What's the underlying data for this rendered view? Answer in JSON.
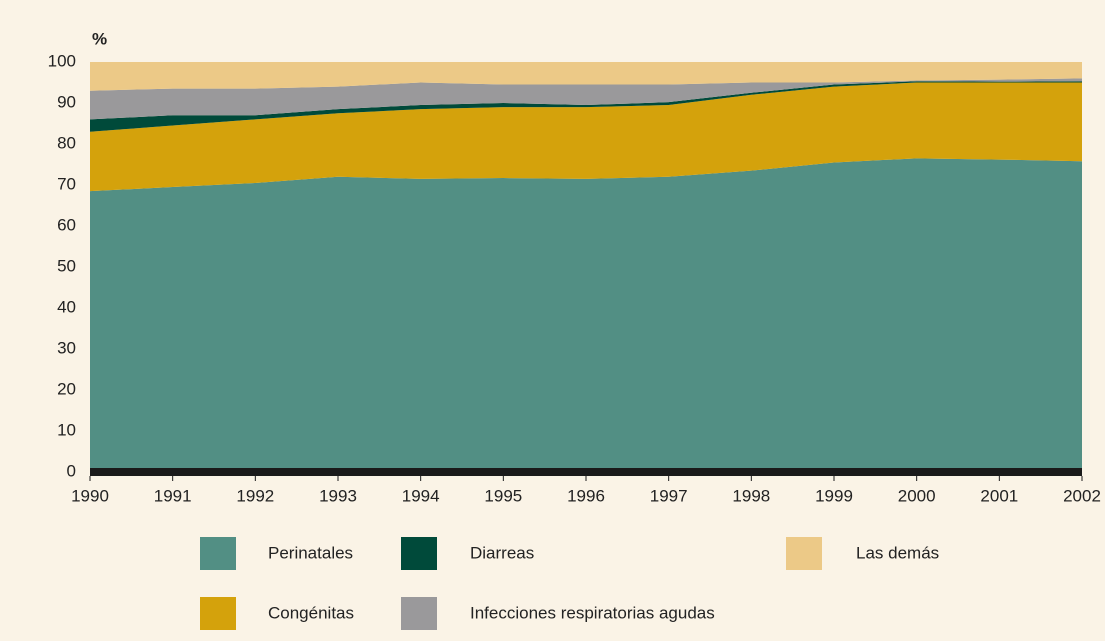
{
  "chart_data": {
    "type": "stacked_area",
    "y_label": "%",
    "x": [
      1990,
      1991,
      1992,
      1993,
      1994,
      1995,
      1996,
      1997,
      1998,
      1999,
      2000,
      2001,
      2002
    ],
    "xlim": [
      1990,
      2002
    ],
    "xticks": [
      1990,
      1991,
      1992,
      1993,
      1994,
      1995,
      1996,
      1997,
      1998,
      1999,
      2000,
      2001,
      2002
    ],
    "ylim": [
      0,
      100
    ],
    "yticks": [
      0,
      10,
      20,
      30,
      40,
      50,
      60,
      70,
      80,
      90,
      100
    ],
    "grid": false,
    "series": [
      {
        "name": "Perinatales",
        "color": "#528f84",
        "values": [
          68.5,
          69.5,
          70.5,
          72,
          71.5,
          71.7,
          71.5,
          72,
          73.5,
          75.5,
          76.5,
          76.2,
          75.8
        ]
      },
      {
        "name": "Congénitas",
        "color": "#d4a20c",
        "values": [
          14.5,
          15,
          15.5,
          15.5,
          17,
          17.3,
          17.5,
          17.5,
          18.5,
          18.5,
          18.5,
          18.8,
          19.2
        ]
      },
      {
        "name": "Diarreas",
        "color": "#004a3a",
        "values": [
          3,
          2.5,
          1,
          1,
          1,
          1,
          0.5,
          0.7,
          0.5,
          0.5,
          0.3,
          0.2,
          0.3
        ]
      },
      {
        "name": "Infecciones respiratorias agudas",
        "color": "#9a999b",
        "values": [
          7,
          6.5,
          6.5,
          5.5,
          5.5,
          4.5,
          5,
          4.3,
          2.5,
          0.5,
          0.2,
          0.5,
          0.7
        ]
      },
      {
        "name": "Las demás",
        "color": "#ecc987",
        "values": [
          7,
          6.5,
          6.5,
          6,
          5,
          5.5,
          5.5,
          5.5,
          5,
          5,
          4.5,
          4.3,
          4
        ]
      }
    ]
  }
}
